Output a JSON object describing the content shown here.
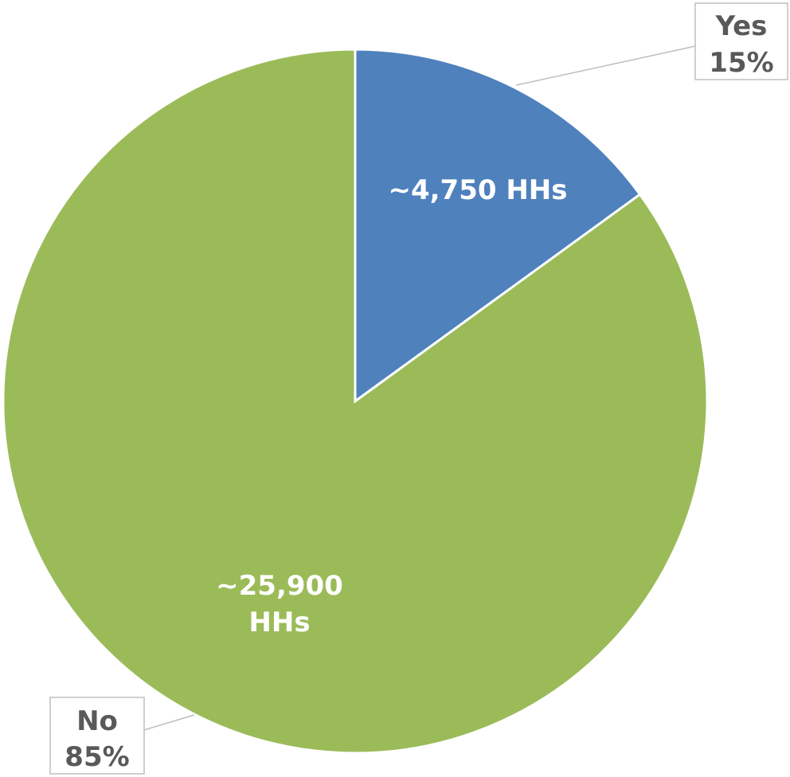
{
  "chart_data": {
    "type": "pie",
    "categories": [
      "Yes",
      "No"
    ],
    "values": [
      15,
      85
    ],
    "percent_labels": [
      "15%",
      "85%"
    ],
    "data_labels": [
      [
        "~4,750 HHs"
      ],
      [
        "~25,900",
        "HHs"
      ]
    ],
    "colors": [
      "#4f81bd",
      "#9bbb59"
    ],
    "start_angle_deg": 0,
    "direction": "clockwise",
    "legend": "none"
  }
}
